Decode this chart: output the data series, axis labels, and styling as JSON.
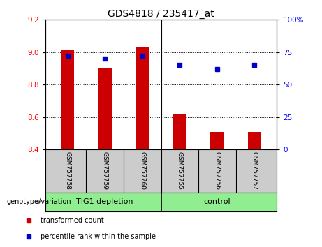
{
  "title": "GDS4818 / 235417_at",
  "samples": [
    "GSM757758",
    "GSM757759",
    "GSM757760",
    "GSM757755",
    "GSM757756",
    "GSM757757"
  ],
  "bar_values": [
    9.01,
    8.9,
    9.03,
    8.62,
    8.51,
    8.51
  ],
  "bar_baseline": 8.4,
  "percentile_values": [
    72,
    70,
    72,
    65,
    62,
    65
  ],
  "bar_color": "#CC0000",
  "dot_color": "#0000CC",
  "ylim_left": [
    8.4,
    9.2
  ],
  "ylim_right": [
    0,
    100
  ],
  "yticks_left": [
    8.4,
    8.6,
    8.8,
    9.0,
    9.2
  ],
  "yticks_right": [
    0,
    25,
    50,
    75,
    100
  ],
  "ytick_labels_right": [
    "0",
    "25",
    "50",
    "75",
    "100%"
  ],
  "group_separator_index": 2.5,
  "group_labels": [
    "TIG1 depletion",
    "control"
  ],
  "left_label": "genotype/variation",
  "legend_items": [
    {
      "label": "transformed count",
      "color": "#CC0000"
    },
    {
      "label": "percentile rank within the sample",
      "color": "#0000CC"
    }
  ],
  "background_color": "#ffffff",
  "tick_area_color": "#cccccc",
  "green_color": "#90EE90",
  "bar_width": 0.35
}
